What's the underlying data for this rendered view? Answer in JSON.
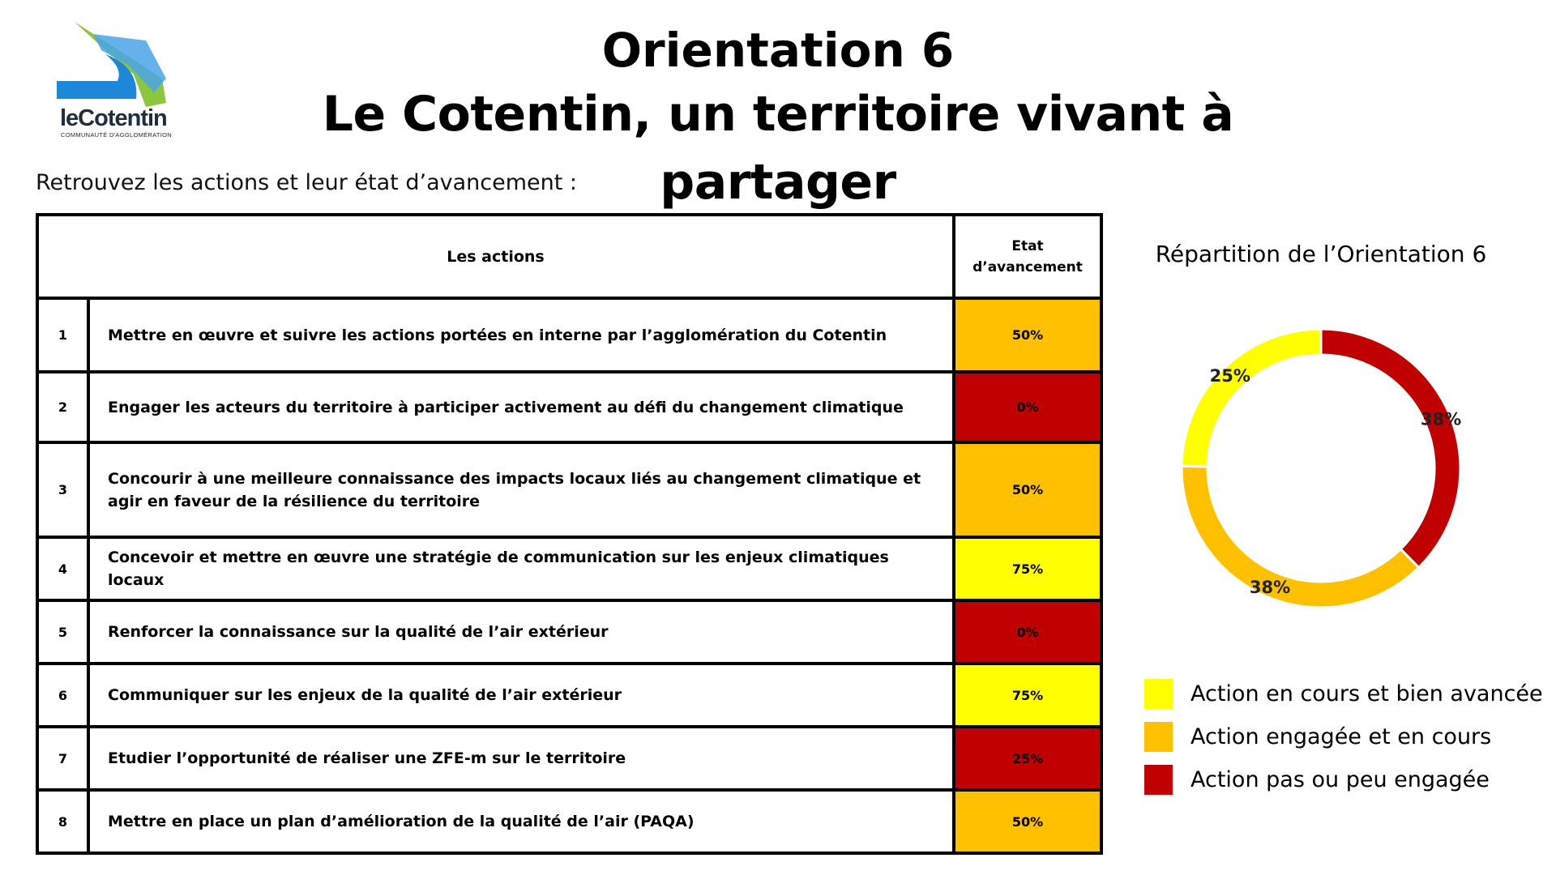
{
  "logo": {
    "name": "leCotentin",
    "sub": "COMMUNAUTÉ D'AGGLOMÉRATION"
  },
  "title": {
    "line1": "Orientation 6",
    "line2": "Le Cotentin, un territoire vivant à partager"
  },
  "subtitle": "Retrouvez les actions et leur état d’avancement :",
  "table": {
    "header_actions": "Les actions",
    "header_etat_line1": "Etat",
    "header_etat_line2": "d’avancement",
    "rows": [
      {
        "num": "1",
        "label": "Mettre en œuvre et suivre les actions portées en interne par l’agglomération du Cotentin",
        "pct": "50%",
        "status": "engagee"
      },
      {
        "num": "2",
        "label": "Engager les acteurs du territoire à participer activement au défi du changement climatique",
        "pct": "0%",
        "status": "peu"
      },
      {
        "num": "3",
        "label": "Concourir à une meilleure connaissance des impacts locaux liés au changement climatique et agir en faveur de la résilience du territoire",
        "pct": "50%",
        "status": "engagee"
      },
      {
        "num": "4",
        "label": "Concevoir et mettre en œuvre une stratégie de communication sur les enjeux climatiques locaux",
        "pct": "75%",
        "status": "avancee"
      },
      {
        "num": "5",
        "label": "Renforcer la connaissance sur la qualité de l’air extérieur",
        "pct": "0%",
        "status": "peu"
      },
      {
        "num": "6",
        "label": "Communiquer sur les enjeux de la qualité de l’air extérieur",
        "pct": "75%",
        "status": "avancee"
      },
      {
        "num": "7",
        "label": "Etudier l’opportunité de réaliser une ZFE-m sur le territoire",
        "pct": "25%",
        "status": "peu"
      },
      {
        "num": "8",
        "label": "Mettre en place un plan d’amélioration de la qualité de l’air (PAQA)",
        "pct": "50%",
        "status": "engagee"
      }
    ]
  },
  "colors": {
    "avancee": "#ffff00",
    "engagee": "#ffc000",
    "peu": "#c00000",
    "logo_green": "#8cc63f",
    "logo_blue": "#1e88d8"
  },
  "chart_data": {
    "type": "pie",
    "title": "Répartition de l’Orientation 6",
    "slices": [
      {
        "label": "Action pas ou peu engagée",
        "value": 38,
        "display": "38%",
        "color": "#c00000"
      },
      {
        "label": "Action engagée et en cours",
        "value": 38,
        "display": "38%",
        "color": "#ffc000"
      },
      {
        "label": "Action en cours et bien avancée",
        "value": 25,
        "display": "25%",
        "color": "#ffff00"
      }
    ],
    "legend": [
      {
        "label": "Action en cours et bien avancée",
        "color": "#ffff00"
      },
      {
        "label": "Action engagée et en cours",
        "color": "#ffc000"
      },
      {
        "label": "Action pas ou peu engagée",
        "color": "#c00000"
      }
    ],
    "legend_position": "bottom-right"
  }
}
